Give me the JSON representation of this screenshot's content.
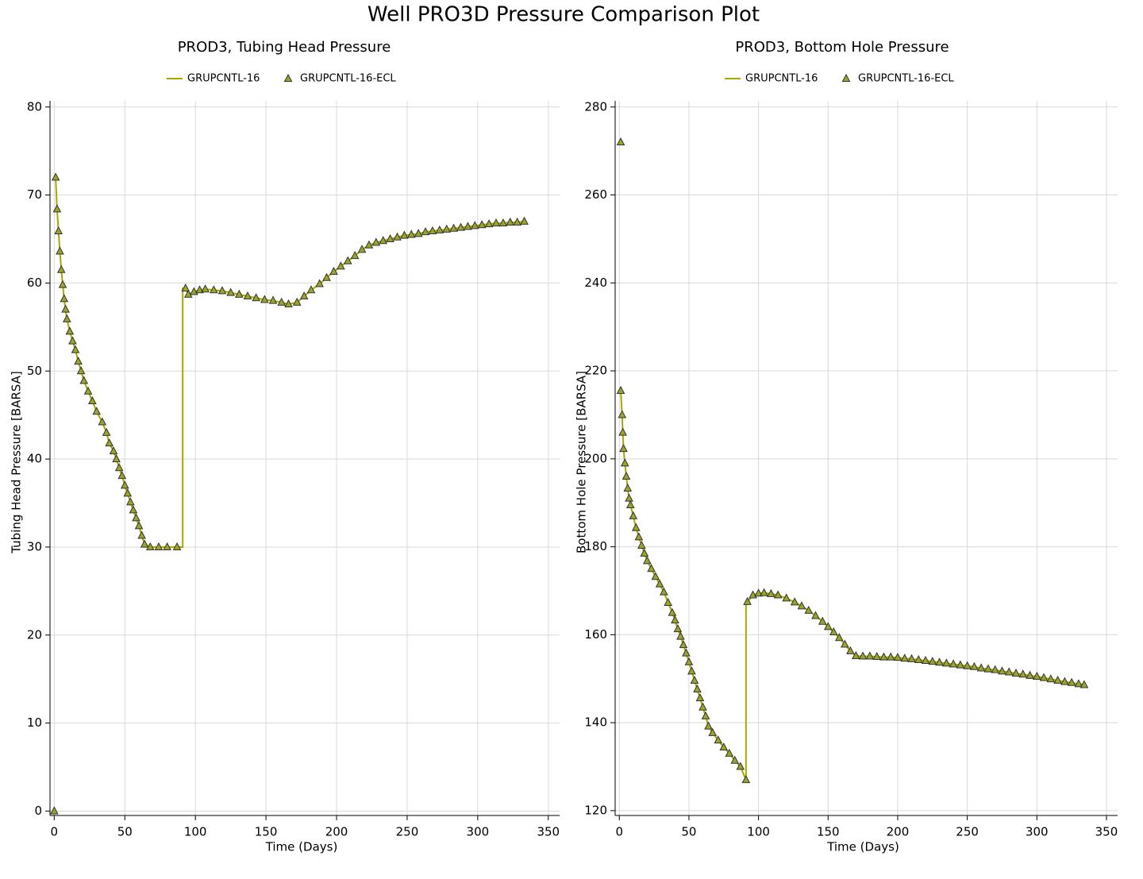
{
  "title": "Well PRO3D Pressure Comparison Plot",
  "chart_data": [
    {
      "type": "line",
      "title": "PROD3, Tubing Head Pressure",
      "x_label": "Time (Days)",
      "y_label": "Tubing Head Pressure [BARSA]",
      "xlim": [
        -3,
        358
      ],
      "ylim": [
        -0.5,
        80.7
      ],
      "xticks": [
        0,
        50,
        100,
        150,
        200,
        250,
        300,
        350
      ],
      "yticks": [
        0,
        10,
        20,
        30,
        40,
        50,
        60,
        70,
        80
      ],
      "grid": true,
      "series": [
        {
          "name": "GRUPCNTL-16",
          "type": "line",
          "color": "#a8a800",
          "x": [
            1,
            2,
            3,
            4,
            5,
            6,
            7,
            8,
            9,
            11,
            13,
            15,
            17,
            19,
            21,
            24,
            27,
            30,
            34,
            37,
            39,
            42,
            44,
            46,
            48,
            50,
            52,
            54,
            56,
            58,
            60,
            62,
            64,
            68,
            74,
            80,
            87,
            91,
            91,
            93,
            95,
            99,
            103,
            107,
            113,
            119,
            125,
            131,
            137,
            143,
            149,
            155,
            161,
            166,
            172,
            177,
            182,
            188,
            193,
            198,
            203,
            208,
            213,
            218,
            223,
            228,
            233,
            238,
            243,
            248,
            253,
            258,
            263,
            268,
            273,
            278,
            283,
            288,
            293,
            298,
            303,
            308,
            313,
            318,
            323,
            328,
            333
          ],
          "values": [
            72,
            68.4,
            65.9,
            63.6,
            61.5,
            59.8,
            58.2,
            57,
            55.9,
            54.5,
            53.4,
            52.4,
            51.1,
            50,
            48.9,
            47.7,
            46.6,
            45.4,
            44.2,
            43,
            41.8,
            40.9,
            40,
            39,
            38.1,
            37,
            36.1,
            35.1,
            34.2,
            33.3,
            32.4,
            31.3,
            30.3,
            30,
            30,
            30,
            30,
            30,
            59.4,
            59.4,
            58.7,
            59,
            59.2,
            59.3,
            59.2,
            59.1,
            58.9,
            58.7,
            58.5,
            58.3,
            58.1,
            58,
            57.8,
            57.6,
            57.8,
            58.5,
            59.2,
            59.9,
            60.6,
            61.3,
            61.9,
            62.5,
            63.1,
            63.8,
            64.3,
            64.6,
            64.8,
            65,
            65.2,
            65.4,
            65.5,
            65.6,
            65.8,
            65.9,
            66,
            66.1,
            66.2,
            66.3,
            66.4,
            66.5,
            66.6,
            66.7,
            66.8,
            66.8,
            66.9,
            66.9,
            67
          ]
        },
        {
          "name": "GRUPCNTL-16-ECL",
          "type": "scatter",
          "color": "#9aa52a",
          "x": [
            0,
            1,
            2,
            3,
            4,
            5,
            6,
            7,
            8,
            9,
            11,
            13,
            15,
            17,
            19,
            21,
            24,
            27,
            30,
            34,
            37,
            39,
            42,
            44,
            46,
            48,
            50,
            52,
            54,
            56,
            58,
            60,
            62,
            64,
            68,
            74,
            80,
            87,
            93,
            95,
            99,
            103,
            107,
            113,
            119,
            125,
            131,
            137,
            143,
            149,
            155,
            161,
            166,
            172,
            177,
            182,
            188,
            193,
            198,
            203,
            208,
            213,
            218,
            223,
            228,
            233,
            238,
            243,
            248,
            253,
            258,
            263,
            268,
            273,
            278,
            283,
            288,
            293,
            298,
            303,
            308,
            313,
            318,
            323,
            328,
            333
          ],
          "values": [
            0,
            72,
            68.4,
            65.9,
            63.6,
            61.5,
            59.8,
            58.2,
            57,
            55.9,
            54.5,
            53.4,
            52.4,
            51.1,
            50,
            48.9,
            47.7,
            46.6,
            45.4,
            44.2,
            43,
            41.8,
            40.9,
            40,
            39,
            38.1,
            37,
            36.1,
            35.1,
            34.2,
            33.3,
            32.4,
            31.3,
            30.3,
            30,
            30,
            30,
            30,
            59.4,
            58.7,
            59,
            59.2,
            59.3,
            59.2,
            59.1,
            58.9,
            58.7,
            58.5,
            58.3,
            58.1,
            58,
            57.8,
            57.6,
            57.8,
            58.5,
            59.2,
            59.9,
            60.6,
            61.3,
            61.9,
            62.5,
            63.1,
            63.8,
            64.3,
            64.6,
            64.8,
            65,
            65.2,
            65.4,
            65.5,
            65.6,
            65.8,
            65.9,
            66,
            66.1,
            66.2,
            66.3,
            66.4,
            66.5,
            66.6,
            66.7,
            66.8,
            66.8,
            66.9,
            66.9,
            67
          ]
        }
      ]
    },
    {
      "type": "line",
      "title": "PROD3, Bottom Hole Pressure",
      "x_label": "Time (Days)",
      "y_label": "Bottom Hole Pressure [BARSA]",
      "xlim": [
        -3,
        358
      ],
      "ylim": [
        118.9,
        281.4
      ],
      "xticks": [
        0,
        50,
        100,
        150,
        200,
        250,
        300,
        350
      ],
      "yticks": [
        120,
        140,
        160,
        180,
        200,
        220,
        240,
        260,
        280
      ],
      "grid": true,
      "series": [
        {
          "name": "GRUPCNTL-16",
          "type": "line",
          "color": "#a8a800",
          "x": [
            1,
            2,
            2.5,
            3,
            4,
            5,
            6,
            7,
            8,
            10,
            12,
            14,
            16,
            18,
            20,
            23,
            26,
            29,
            32,
            35,
            38,
            40,
            42,
            44,
            46,
            48,
            50,
            52,
            54,
            56,
            58,
            60,
            62,
            64,
            67,
            71,
            75,
            79,
            83,
            87,
            91,
            91,
            92,
            96,
            100,
            104,
            109,
            114,
            120,
            126,
            131,
            136,
            141,
            146,
            150,
            154,
            158,
            162,
            166,
            170,
            175,
            180,
            185,
            190,
            195,
            200,
            205,
            210,
            215,
            220,
            225,
            230,
            235,
            240,
            245,
            250,
            255,
            260,
            265,
            270,
            275,
            280,
            285,
            290,
            295,
            300,
            305,
            310,
            315,
            320,
            325,
            330,
            334
          ],
          "values": [
            215.5,
            210,
            206,
            202.3,
            199,
            196,
            193.3,
            191,
            189.5,
            187,
            184.3,
            182.2,
            180.3,
            178.5,
            176.8,
            175,
            173.2,
            171.5,
            169.7,
            167.3,
            165,
            163.3,
            161.3,
            159.6,
            157.7,
            155.8,
            153.8,
            151.7,
            149.6,
            147.6,
            145.6,
            143.5,
            141.5,
            139.2,
            137.7,
            136,
            134.4,
            133,
            131.4,
            130,
            127,
            167.5,
            167.5,
            169,
            169.4,
            169.5,
            169.3,
            169,
            168.3,
            167.4,
            166.5,
            165.5,
            164.3,
            163,
            161.8,
            160.6,
            159.3,
            157.8,
            156.3,
            155.2,
            155.1,
            155.1,
            155,
            154.9,
            154.9,
            154.8,
            154.6,
            154.5,
            154.3,
            154.1,
            153.9,
            153.7,
            153.5,
            153.3,
            153.1,
            152.9,
            152.7,
            152.4,
            152.2,
            152,
            151.7,
            151.5,
            151.2,
            151,
            150.7,
            150.5,
            150.2,
            149.9,
            149.6,
            149.3,
            149.1,
            148.8,
            148.6
          ]
        },
        {
          "name": "GRUPCNTL-16-ECL",
          "type": "scatter",
          "color": "#9aa52a",
          "x": [
            1,
            1,
            2,
            2.5,
            3,
            4,
            5,
            6,
            7,
            8,
            10,
            12,
            14,
            16,
            18,
            20,
            23,
            26,
            29,
            32,
            35,
            38,
            40,
            42,
            44,
            46,
            48,
            50,
            52,
            54,
            56,
            58,
            60,
            62,
            64,
            67,
            71,
            75,
            79,
            83,
            87,
            91,
            92,
            96,
            100,
            104,
            109,
            114,
            120,
            126,
            131,
            136,
            141,
            146,
            150,
            154,
            158,
            162,
            166,
            170,
            175,
            180,
            185,
            190,
            195,
            200,
            205,
            210,
            215,
            220,
            225,
            230,
            235,
            240,
            245,
            250,
            255,
            260,
            265,
            270,
            275,
            280,
            285,
            290,
            295,
            300,
            305,
            310,
            315,
            320,
            325,
            330,
            334
          ],
          "values": [
            272,
            215.5,
            210,
            206,
            202.3,
            199,
            196,
            193.3,
            191,
            189.5,
            187,
            184.3,
            182.2,
            180.3,
            178.5,
            176.8,
            175,
            173.2,
            171.5,
            169.7,
            167.3,
            165,
            163.3,
            161.3,
            159.6,
            157.7,
            155.8,
            153.8,
            151.7,
            149.6,
            147.6,
            145.6,
            143.5,
            141.5,
            139.2,
            137.7,
            136,
            134.4,
            133,
            131.4,
            130,
            127,
            167.5,
            169,
            169.4,
            169.5,
            169.3,
            169,
            168.3,
            167.4,
            166.5,
            165.5,
            164.3,
            163,
            161.8,
            160.6,
            159.3,
            157.8,
            156.3,
            155.2,
            155.1,
            155.1,
            155,
            154.9,
            154.9,
            154.8,
            154.6,
            154.5,
            154.3,
            154.1,
            153.9,
            153.7,
            153.5,
            153.3,
            153.1,
            152.9,
            152.7,
            152.4,
            152.2,
            152,
            151.7,
            151.5,
            151.2,
            151,
            150.7,
            150.5,
            150.2,
            149.9,
            149.6,
            149.3,
            149.1,
            148.8,
            148.6
          ]
        }
      ]
    }
  ]
}
